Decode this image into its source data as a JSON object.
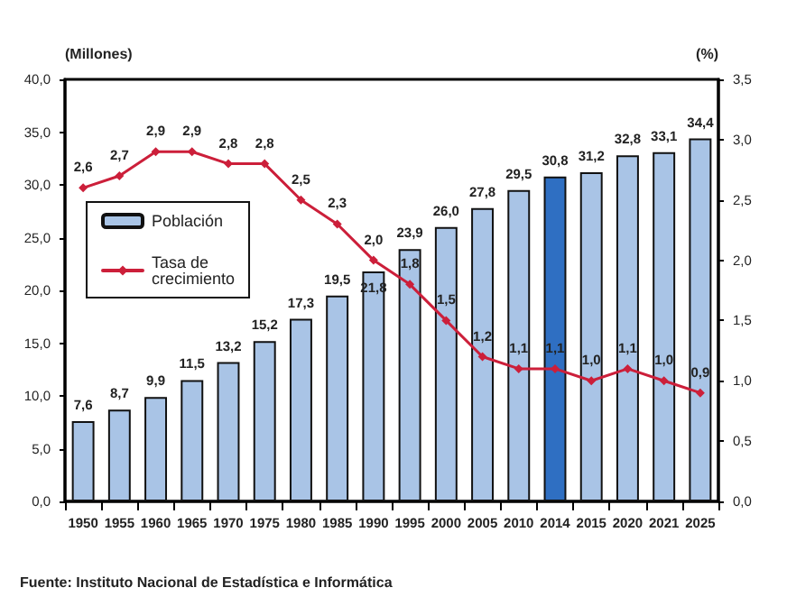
{
  "chart_data": {
    "type": "bar",
    "ylabel": "(Millones)",
    "y2label": "(%)",
    "categories": [
      "1950",
      "1955",
      "1960",
      "1965",
      "1970",
      "1975",
      "1980",
      "1985",
      "1990",
      "1995",
      "2000",
      "2005",
      "2010",
      "2014",
      "2015",
      "2020",
      "2021",
      "2025"
    ],
    "series": [
      {
        "name": "Población",
        "colors": [
          "#a9c4e6",
          "#a9c4e6",
          "#a9c4e6",
          "#a9c4e6",
          "#a9c4e6",
          "#a9c4e6",
          "#a9c4e6",
          "#a9c4e6",
          "#a9c4e6",
          "#a9c4e6",
          "#a9c4e6",
          "#a9c4e6",
          "#a9c4e6",
          "#2f6fc2",
          "#a9c4e6",
          "#a9c4e6",
          "#a9c4e6",
          "#a9c4e6"
        ],
        "values": [
          7.6,
          8.7,
          9.9,
          11.5,
          13.2,
          15.2,
          17.3,
          19.5,
          21.8,
          23.9,
          26.0,
          27.8,
          29.5,
          30.8,
          31.2,
          32.8,
          33.1,
          34.4
        ],
        "value_labels": [
          "7,6",
          "8,7",
          "9,9",
          "11,5",
          "13,2",
          "15,2",
          "17,3",
          "19,5",
          "21,8",
          "23,9",
          "26,0",
          "27,8",
          "29,5",
          "30,8",
          "31,2",
          "32,8",
          "33,1",
          "34,4"
        ]
      },
      {
        "name": "Tasa de crecimiento",
        "type": "line",
        "axis": "y2",
        "color": "#cc1f3a",
        "values": [
          2.6,
          2.7,
          2.9,
          2.9,
          2.8,
          2.8,
          2.5,
          2.3,
          2.0,
          1.8,
          1.5,
          1.2,
          1.1,
          1.1,
          1.0,
          1.1,
          1.0,
          0.9
        ],
        "value_labels": [
          "2,6",
          "2,7",
          "2,9",
          "2,9",
          "2,8",
          "2,8",
          "2,5",
          "2,3",
          "2,0",
          "1,8",
          "1,5",
          "1,2",
          "1,1",
          "1,1",
          "1,0",
          "1,1",
          "1,0",
          "0,9"
        ]
      }
    ],
    "ylim": [
      0,
      40
    ],
    "yticks": [
      {
        "value": 0,
        "label": "0,0"
      },
      {
        "value": 5,
        "label": "5,0"
      },
      {
        "value": 10,
        "label": "10,0"
      },
      {
        "value": 15,
        "label": "15,0"
      },
      {
        "value": 20,
        "label": "20,0"
      },
      {
        "value": 25,
        "label": "25,0"
      },
      {
        "value": 30,
        "label": "30,0"
      },
      {
        "value": 35,
        "label": "35,0"
      },
      {
        "value": 40,
        "label": "40,0"
      }
    ],
    "y2lim": [
      0,
      3.5
    ],
    "y2ticks": [
      {
        "value": 0,
        "label": "0,0"
      },
      {
        "value": 0.5,
        "label": "0,5"
      },
      {
        "value": 1,
        "label": "1,0"
      },
      {
        "value": 1.5,
        "label": "1,5"
      },
      {
        "value": 2,
        "label": "2,0"
      },
      {
        "value": 2.5,
        "label": "2,5"
      },
      {
        "value": 3,
        "label": "3,0"
      },
      {
        "value": 3.5,
        "label": "3,5"
      }
    ],
    "grid": false,
    "legend": "top left",
    "marker": "diamond",
    "line_style": "solid",
    "annotations": [
      "Fuente: Instituto Nacional de Estadística e Informática"
    ]
  }
}
